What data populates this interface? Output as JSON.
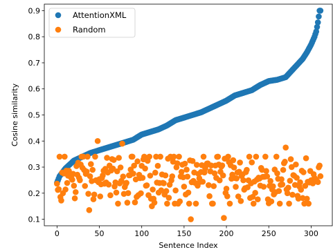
{
  "chart_data": {
    "type": "scatter",
    "xlabel": "Sentence Index",
    "ylabel": "Cosine similarity",
    "xlim": [
      -15,
      325
    ],
    "ylim": [
      0.075,
      0.925
    ],
    "xticks": [
      0,
      50,
      100,
      150,
      200,
      250,
      300
    ],
    "yticks": [
      0.1,
      0.2,
      0.3,
      0.4,
      0.5,
      0.6,
      0.7,
      0.8,
      0.9
    ],
    "xtick_labels": [
      "0",
      "50",
      "100",
      "150",
      "200",
      "250",
      "300"
    ],
    "ytick_labels": [
      "0.1",
      "0.2",
      "0.3",
      "0.4",
      "0.5",
      "0.6",
      "0.7",
      "0.8",
      "0.9"
    ],
    "grid": false,
    "legend_position": "top-left",
    "n_points": 312,
    "series": [
      {
        "name": "AttentionXML",
        "color": "#1f77b4",
        "description": "sorted ascending curve",
        "anchors": [
          [
            0,
            0.24
          ],
          [
            3,
            0.265
          ],
          [
            10,
            0.295
          ],
          [
            20,
            0.325
          ],
          [
            30,
            0.34
          ],
          [
            40,
            0.355
          ],
          [
            50,
            0.365
          ],
          [
            60,
            0.375
          ],
          [
            70,
            0.385
          ],
          [
            80,
            0.395
          ],
          [
            90,
            0.405
          ],
          [
            100,
            0.425
          ],
          [
            110,
            0.435
          ],
          [
            120,
            0.445
          ],
          [
            130,
            0.46
          ],
          [
            140,
            0.48
          ],
          [
            150,
            0.49
          ],
          [
            160,
            0.5
          ],
          [
            170,
            0.51
          ],
          [
            180,
            0.525
          ],
          [
            190,
            0.54
          ],
          [
            200,
            0.555
          ],
          [
            210,
            0.575
          ],
          [
            220,
            0.585
          ],
          [
            230,
            0.595
          ],
          [
            240,
            0.615
          ],
          [
            250,
            0.63
          ],
          [
            260,
            0.635
          ],
          [
            270,
            0.645
          ],
          [
            280,
            0.68
          ],
          [
            290,
            0.715
          ],
          [
            295,
            0.74
          ],
          [
            300,
            0.77
          ],
          [
            304,
            0.8
          ],
          [
            306,
            0.82
          ],
          [
            308,
            0.855
          ],
          [
            310,
            0.9
          ],
          [
            311,
            0.9
          ]
        ]
      },
      {
        "name": "Random",
        "color": "#ff7f0e",
        "description": "scattered between ~0.10 and ~0.40, centered near 0.25",
        "mean": 0.255,
        "spread": 0.055,
        "outliers": [
          [
            48,
            0.4
          ],
          [
            77,
            0.39
          ],
          [
            38,
            0.135
          ],
          [
            158,
            0.1
          ],
          [
            197,
            0.105
          ],
          [
            112,
            0.15
          ],
          [
            270,
            0.375
          ]
        ]
      }
    ]
  }
}
